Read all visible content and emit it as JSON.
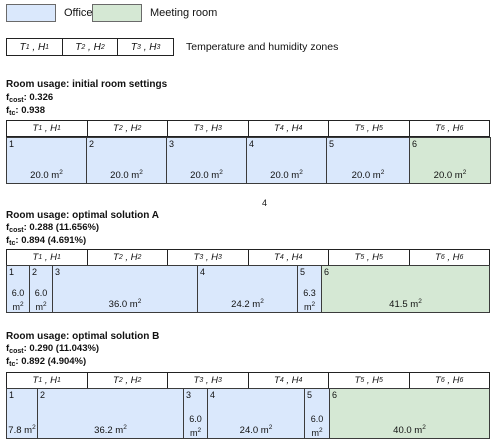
{
  "legend": {
    "office_label": "Office",
    "meeting_label": "Meeting room",
    "office_color": "#dae8fc",
    "meeting_color": "#d5e8d4",
    "zones_caption": "Temperature and humidity zones",
    "zones": [
      "T1 , H1",
      "T2 , H2",
      "T3 , H3"
    ]
  },
  "headers": [
    "T1 , H1",
    "T2 , H2",
    "T3 , H3",
    "T4 , H4",
    "T5 , H5",
    "T6 , H6"
  ],
  "page_number": "4",
  "sections": [
    {
      "title": "Room usage: initial room settings",
      "f_cost_label": "f",
      "f_cost_sub": "cost",
      "f_cost": ": 0.326",
      "f_tc_label": "f",
      "f_tc_sub": "tc",
      "f_tc": ": 0.938",
      "rooms": [
        {
          "num": "1",
          "area": "20.0 m2",
          "type": "office"
        },
        {
          "num": "2",
          "area": "20.0 m2",
          "type": "office"
        },
        {
          "num": "3",
          "area": "20.0 m2",
          "type": "office"
        },
        {
          "num": "4",
          "area": "20.0 m2",
          "type": "office"
        },
        {
          "num": "5",
          "area": "20.0 m2",
          "type": "office"
        },
        {
          "num": "6",
          "area": "20.0 m2",
          "type": "meeting"
        }
      ]
    },
    {
      "title": "Room usage: optimal solution A",
      "f_cost_label": "f",
      "f_cost_sub": "cost",
      "f_cost": ": 0.288 (11.656%)",
      "f_tc_label": "f",
      "f_tc_sub": "tc",
      "f_tc": ": 0.894 (4.691%)",
      "rooms": [
        {
          "num": "1",
          "area": "6.0 m2",
          "type": "office"
        },
        {
          "num": "2",
          "area": "6.0 m2",
          "type": "office"
        },
        {
          "num": "3",
          "area": "36.0 m2",
          "type": "office"
        },
        {
          "num": "4",
          "area": "24.2 m2",
          "type": "office"
        },
        {
          "num": "5",
          "area": "6.3 m2",
          "type": "office"
        },
        {
          "num": "6",
          "area": "41.5 m2",
          "type": "meeting"
        }
      ]
    },
    {
      "title": "Room usage: optimal solution B",
      "f_cost_label": "f",
      "f_cost_sub": "cost",
      "f_cost": ": 0.290 (11.043%)",
      "f_tc_label": "f",
      "f_tc_sub": "tc",
      "f_tc": ": 0.892 (4.904%)",
      "rooms": [
        {
          "num": "1",
          "area": "7.8 m2",
          "type": "office"
        },
        {
          "num": "2",
          "area": "36.2 m2",
          "type": "office"
        },
        {
          "num": "3",
          "area": "6.0 m2",
          "type": "office"
        },
        {
          "num": "4",
          "area": "24.0 m2",
          "type": "office"
        },
        {
          "num": "5",
          "area": "6.0 m2",
          "type": "office"
        },
        {
          "num": "6",
          "area": "40.0 m2",
          "type": "meeting"
        }
      ]
    }
  ]
}
